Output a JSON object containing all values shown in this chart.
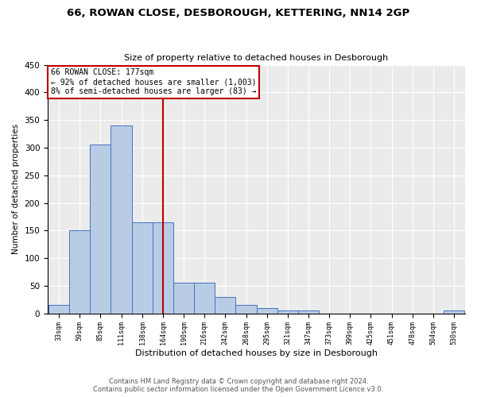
{
  "title1": "66, ROWAN CLOSE, DESBOROUGH, KETTERING, NN14 2GP",
  "title2": "Size of property relative to detached houses in Desborough",
  "xlabel": "Distribution of detached houses by size in Desborough",
  "ylabel": "Number of detached properties",
  "footer1": "Contains HM Land Registry data © Crown copyright and database right 2024.",
  "footer2": "Contains public sector information licensed under the Open Government Licence v3.0.",
  "annotation_line1": "66 ROWAN CLOSE: 177sqm",
  "annotation_line2": "← 92% of detached houses are smaller (1,003)",
  "annotation_line3": "8% of semi-detached houses are larger (83) →",
  "property_size": 177,
  "bar_edges": [
    33,
    59,
    85,
    111,
    138,
    164,
    190,
    216,
    242,
    268,
    295,
    321,
    347,
    373,
    399,
    425,
    451,
    478,
    504,
    530,
    556
  ],
  "bar_heights": [
    15,
    150,
    305,
    340,
    165,
    165,
    55,
    55,
    30,
    15,
    10,
    5,
    5,
    0,
    0,
    0,
    0,
    0,
    0,
    5
  ],
  "bar_color": "#b8cce4",
  "bar_edge_color": "#4472c4",
  "vline_color": "#c00000",
  "vline_x": 177,
  "annotation_box_color": "#c00000",
  "ylim": [
    0,
    450
  ],
  "bg_color": "#ebebeb",
  "grid_color": "#ffffff"
}
